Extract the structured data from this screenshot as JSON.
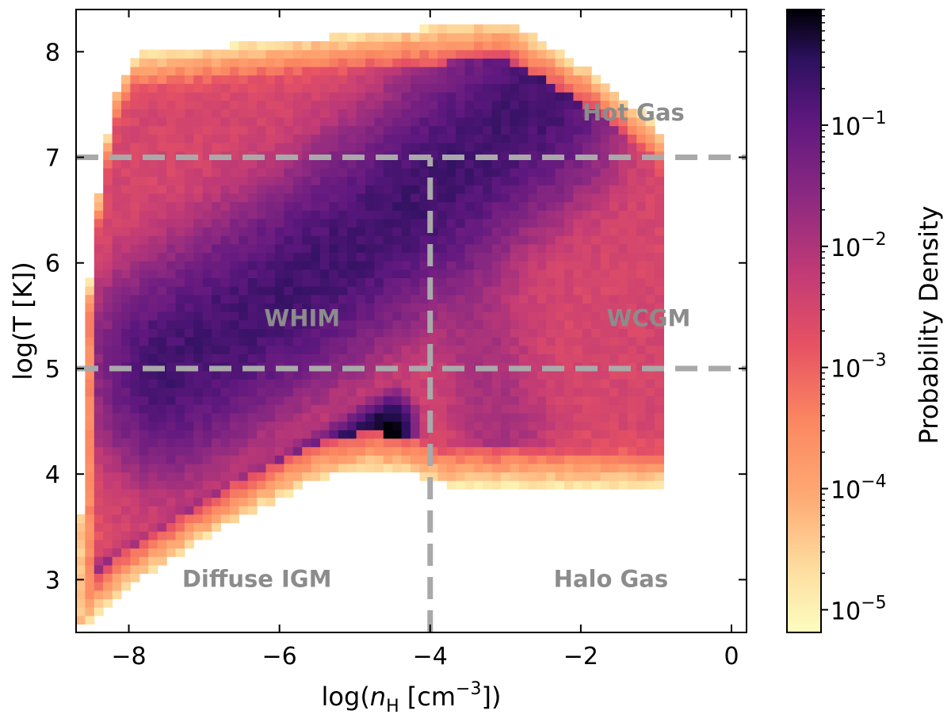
{
  "chart_data": {
    "type": "heatmap",
    "title": "",
    "xlabel_prefix": "log(",
    "xlabel_var": "n",
    "xlabel_sub": "H",
    "xlabel_unit": " [cm",
    "xlabel_exp": "−3",
    "xlabel_suffix": "])",
    "ylabel": "log(T [K])",
    "xlim": [
      -8.7,
      0.2
    ],
    "ylim": [
      2.5,
      8.4
    ],
    "xticks": [
      -8,
      -6,
      -4,
      -2,
      0
    ],
    "xtick_labels": [
      "−8",
      "−6",
      "−4",
      "−2",
      "0"
    ],
    "yticks": [
      3,
      4,
      5,
      6,
      7,
      8
    ],
    "ytick_labels": [
      "3",
      "4",
      "5",
      "6",
      "7",
      "8"
    ],
    "colormap": "magma_r",
    "colorbar": {
      "label": "Probability Density",
      "scale": "log",
      "range": [
        6.5e-06,
        0.9
      ],
      "ticks": [
        1e-05,
        0.0001,
        0.001,
        0.01,
        0.1
      ],
      "tick_base": "10",
      "tick_exponents": [
        "−5",
        "−4",
        "−3",
        "−2",
        "−1"
      ]
    },
    "threshold_lines": [
      {
        "orientation": "horizontal",
        "value": 7,
        "from": -8.7,
        "to": 0.2
      },
      {
        "orientation": "horizontal",
        "value": 5,
        "from": -8.7,
        "to": 0.2
      },
      {
        "orientation": "vertical",
        "value": -4,
        "from": 2.5,
        "to": 7
      }
    ],
    "line_color": "#a9a9a9",
    "regions": [
      {
        "label": "Hot Gas",
        "x": -1.3,
        "y": 7.35
      },
      {
        "label": "WHIM",
        "x": -5.7,
        "y": 5.4
      },
      {
        "label": "WCGM",
        "x": -1.1,
        "y": 5.4
      },
      {
        "label": "Diffuse IGM",
        "x": -6.3,
        "y": 2.93
      },
      {
        "label": "Halo Gas",
        "x": -1.6,
        "y": 2.93
      }
    ],
    "region_color": "#8c8c8c",
    "density_model": {
      "bin_width_x": 0.12,
      "bin_width_y": 0.08,
      "lower_boundary": [
        [
          -8.7,
          2.5
        ],
        [
          -8.1,
          2.9
        ],
        [
          -6.5,
          3.6
        ],
        [
          -5.5,
          3.95
        ],
        [
          -4.8,
          4.05
        ],
        [
          -4.2,
          4.0
        ],
        [
          -3.8,
          3.9
        ],
        [
          -0.9,
          3.9
        ]
      ],
      "upper_boundary": [
        [
          -8.7,
          2.5
        ],
        [
          -8.5,
          6.2
        ],
        [
          -8.2,
          7.6
        ],
        [
          -7.9,
          7.98
        ],
        [
          -6.0,
          8.1
        ],
        [
          -3.0,
          8.3
        ],
        [
          -1.8,
          7.8
        ],
        [
          -1.0,
          7.3
        ],
        [
          -0.5,
          6.5
        ],
        [
          -0.8,
          5.2
        ],
        [
          -0.9,
          4.3
        ],
        [
          -0.9,
          3.9
        ]
      ],
      "ridges": [
        {
          "name": "adiabatic",
          "points": [
            [
              -8.4,
              2.75
            ],
            [
              -6.0,
              3.8
            ],
            [
              -4.5,
              4.45
            ]
          ],
          "width": 0.12,
          "peak": 0.9
        },
        {
          "name": "whim",
          "points": [
            [
              -7.5,
              5.0
            ],
            [
              -5.5,
              5.9
            ],
            [
              -4.2,
              6.6
            ],
            [
              -3.2,
              7.2
            ],
            [
              -2.5,
              7.6
            ]
          ],
          "width": 0.45,
          "peak": 0.2
        },
        {
          "name": "cool",
          "points": [
            [
              -4.5,
              4.05
            ],
            [
              -3.0,
              4.0
            ],
            [
              -1.0,
              4.0
            ]
          ],
          "width": 0.07,
          "peak": 0.15
        },
        {
          "name": "halo",
          "points": [
            [
              -4.0,
              6.9
            ],
            [
              -3.5,
              5.8
            ],
            [
              -3.2,
              4.8
            ],
            [
              -3.0,
              4.3
            ]
          ],
          "width": 0.35,
          "peak": 0.01
        }
      ],
      "background_level": 0.003
    }
  }
}
